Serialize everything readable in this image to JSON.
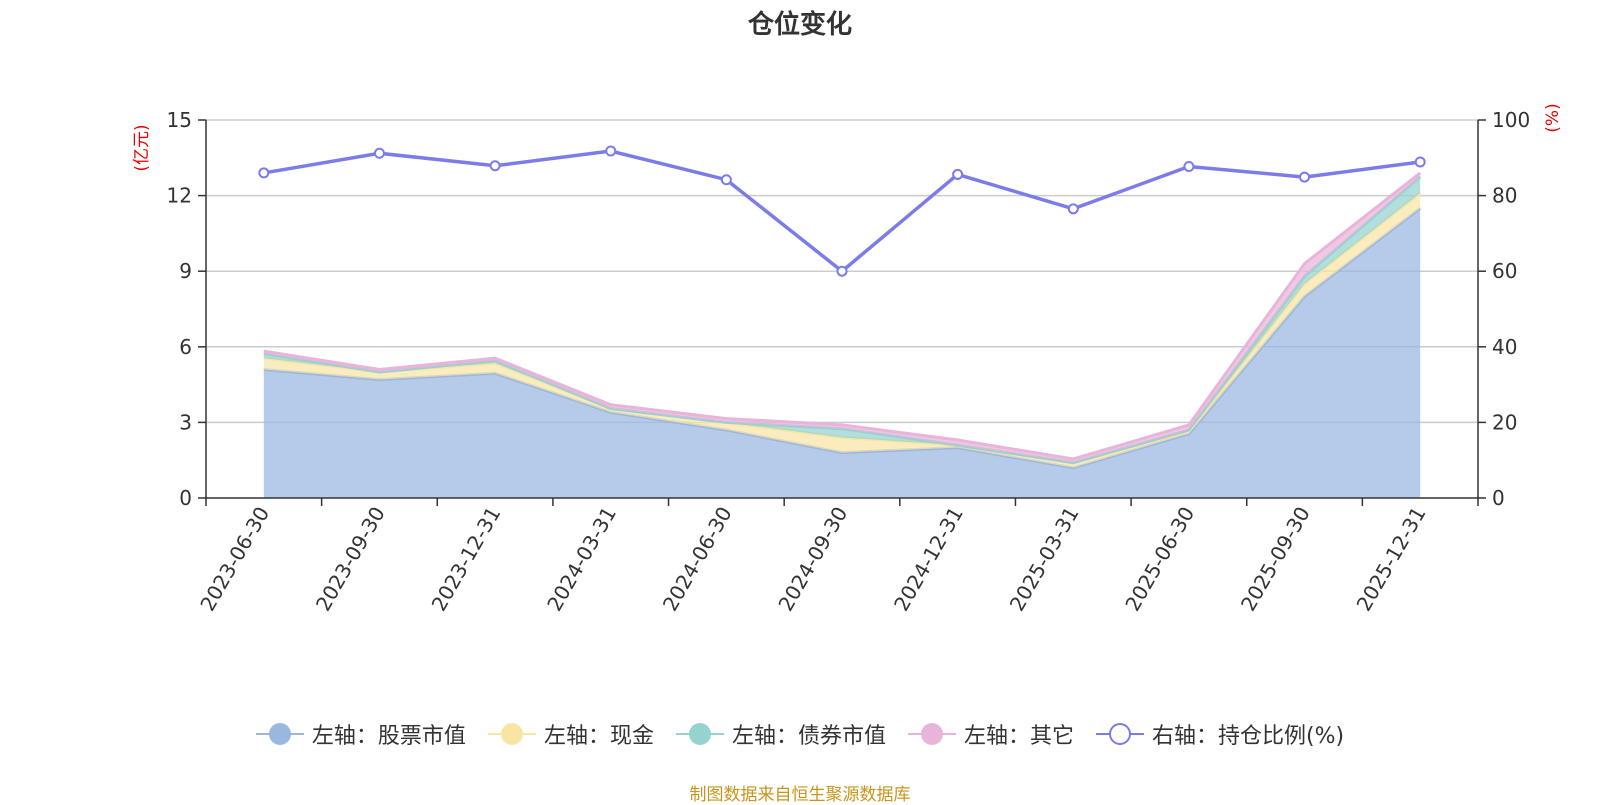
{
  "chart_data": {
    "type": "area",
    "title": "仓位变化",
    "categories": [
      "2023-06-30",
      "2023-09-30",
      "2023-12-31",
      "2024-03-31",
      "2024-06-30",
      "2024-09-30",
      "2024-12-31",
      "2025-03-31",
      "2025-06-30",
      "2025-09-30",
      "2025-12-31"
    ],
    "left_axis": {
      "unit": "(亿元)",
      "ylim": [
        0,
        15
      ],
      "ticks": [
        0,
        3,
        6,
        9,
        12,
        15
      ]
    },
    "right_axis": {
      "unit": "(%)",
      "ylim": [
        0,
        100
      ],
      "ticks": [
        0,
        20,
        40,
        60,
        80,
        100
      ]
    },
    "grid": true,
    "stacked": true,
    "series": [
      {
        "name": "左轴：股票市值",
        "axis": "left",
        "type": "area",
        "color": "#9ab7e0",
        "values": [
          5.1,
          4.7,
          4.95,
          3.4,
          2.7,
          1.8,
          2.0,
          1.2,
          2.55,
          8.0,
          11.5
        ]
      },
      {
        "name": "左轴：现金",
        "axis": "left",
        "type": "area",
        "color": "#f8e5a6",
        "values": [
          0.45,
          0.3,
          0.4,
          0.15,
          0.3,
          0.6,
          0.1,
          0.2,
          0.1,
          0.5,
          0.6
        ]
      },
      {
        "name": "左轴：债券市值",
        "axis": "left",
        "type": "area",
        "color": "#94d3d0",
        "values": [
          0.18,
          0.0,
          0.1,
          0.0,
          0.0,
          0.35,
          0.0,
          0.0,
          0.05,
          0.3,
          0.65
        ]
      },
      {
        "name": "左轴：其它",
        "axis": "left",
        "type": "area",
        "color": "#e9b4da",
        "values": [
          0.1,
          0.1,
          0.1,
          0.15,
          0.15,
          0.15,
          0.2,
          0.15,
          0.2,
          0.5,
          0.15
        ]
      },
      {
        "name": "右轴：持仓比例(%)",
        "axis": "right",
        "type": "line",
        "color": "#7b7bea",
        "values": [
          86.0,
          91.2,
          87.9,
          91.8,
          84.2,
          60.0,
          85.6,
          76.5,
          87.7,
          84.9,
          88.9
        ]
      }
    ]
  },
  "footer": {
    "source": "制图数据来自恒生聚源数据库"
  }
}
